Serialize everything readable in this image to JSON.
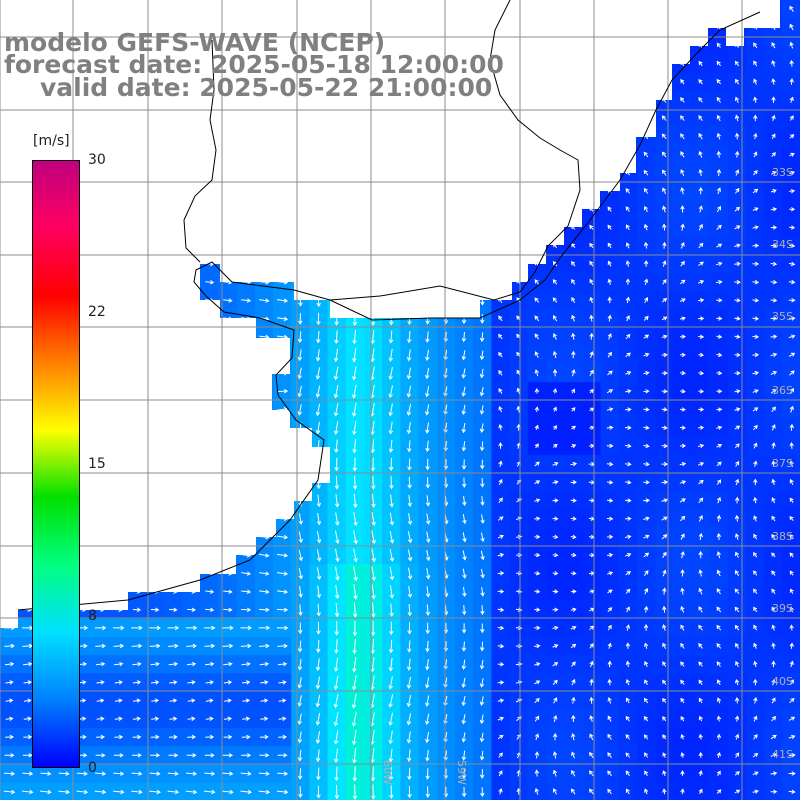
{
  "titles": {
    "model": "modelo GEFS-WAVE (NCEP)",
    "forecast": "forecast date: 2025-05-18 12:00:00",
    "valid": "valid date: 2025-05-22 21:00:00"
  },
  "colorbar": {
    "unit": "[m/s]",
    "ticks": [
      {
        "label": "30",
        "value": 30
      },
      {
        "label": "22",
        "value": 22
      },
      {
        "label": "15",
        "value": 15
      },
      {
        "label": "8",
        "value": 8
      },
      {
        "label": "0",
        "value": 0
      }
    ],
    "colors": [
      "#0000ff",
      "#0080ff",
      "#00e0ff",
      "#00ff80",
      "#00e000",
      "#ffff00",
      "#ff8000",
      "#ff0000",
      "#ff0060",
      "#c00080"
    ]
  },
  "map": {
    "lat_labels": [
      "33S",
      "34S",
      "35S",
      "36S",
      "37S",
      "38S",
      "39S",
      "40S",
      "41S"
    ],
    "lon_labels": [
      "60W",
      "59W"
    ],
    "land_color": "#ffffff",
    "grid_color": "#8c8c8c"
  }
}
